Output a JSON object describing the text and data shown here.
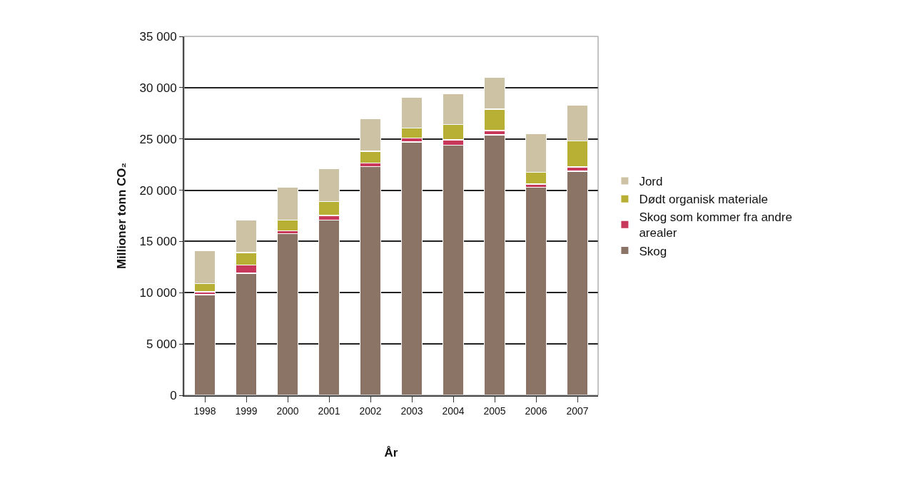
{
  "chart_data": {
    "type": "bar",
    "stacked": true,
    "xlabel": "År",
    "ylabel": "Millioner tonn CO₂",
    "categories": [
      "1998",
      "1999",
      "2000",
      "2001",
      "2002",
      "2003",
      "2004",
      "2005",
      "2006",
      "2007"
    ],
    "series": [
      {
        "name": "Skog",
        "color": "#8b7366",
        "values": [
          9800,
          11900,
          15750,
          17100,
          22300,
          24700,
          24400,
          25400,
          20300,
          21850
        ]
      },
      {
        "name": "Skog som kommer fra andre arealer",
        "color": "#c8385a",
        "values": [
          300,
          800,
          300,
          450,
          350,
          400,
          500,
          400,
          300,
          400
        ]
      },
      {
        "name": "Dødt organisk materiale",
        "color": "#b8b034",
        "values": [
          800,
          1200,
          1050,
          1350,
          1150,
          950,
          1500,
          2100,
          1150,
          2550
        ]
      },
      {
        "name": "Jord",
        "color": "#cdc2a3",
        "values": [
          3200,
          3200,
          3200,
          3200,
          3150,
          3050,
          3000,
          3100,
          3750,
          3500
        ]
      }
    ],
    "ylim": [
      0,
      35000
    ],
    "yticks": [
      0,
      {
        "value": 5000,
        "label": "5 000"
      },
      {
        "value": 10000,
        "label": "10 000"
      },
      {
        "value": 15000,
        "label": "15 000"
      },
      {
        "value": 20000,
        "label": "20 000"
      },
      {
        "value": 25000,
        "label": "25 000"
      },
      {
        "value": 30000,
        "label": "30 000"
      },
      {
        "value": 35000,
        "label": "35 000"
      }
    ],
    "grid": "y",
    "legend": "right"
  }
}
